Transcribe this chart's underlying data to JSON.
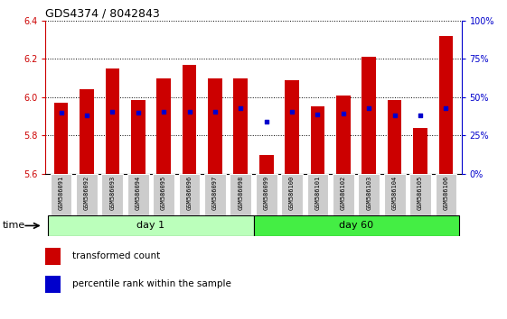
{
  "title": "GDS4374 / 8042843",
  "samples": [
    "GSM586091",
    "GSM586092",
    "GSM586093",
    "GSM586094",
    "GSM586095",
    "GSM586096",
    "GSM586097",
    "GSM586098",
    "GSM586099",
    "GSM586100",
    "GSM586101",
    "GSM586102",
    "GSM586103",
    "GSM586104",
    "GSM586105",
    "GSM586106"
  ],
  "bar_tops": [
    5.97,
    6.04,
    6.15,
    5.985,
    6.1,
    6.17,
    6.1,
    6.1,
    5.7,
    6.09,
    5.955,
    6.01,
    6.21,
    5.985,
    5.84,
    6.32
  ],
  "blue_dot_y": [
    5.92,
    5.905,
    5.925,
    5.92,
    5.925,
    5.925,
    5.925,
    5.945,
    5.875,
    5.925,
    5.91,
    5.915,
    5.945,
    5.905,
    5.905,
    5.945
  ],
  "ymin": 5.6,
  "ymax": 6.4,
  "y_ticks": [
    5.6,
    5.8,
    6.0,
    6.2,
    6.4
  ],
  "right_ticks": [
    0,
    25,
    50,
    75,
    100
  ],
  "bar_color": "#cc0000",
  "blue_color": "#0000cc",
  "day1_samples": 8,
  "day1_label": "day 1",
  "day60_label": "day 60",
  "day1_color": "#bbffbb",
  "day60_color": "#44ee44",
  "time_label": "time",
  "legend_red": "transformed count",
  "legend_blue": "percentile rank within the sample",
  "left_axis_color": "#cc0000",
  "right_axis_color": "#0000cc",
  "tick_label_bg": "#cccccc",
  "bar_width": 0.55
}
